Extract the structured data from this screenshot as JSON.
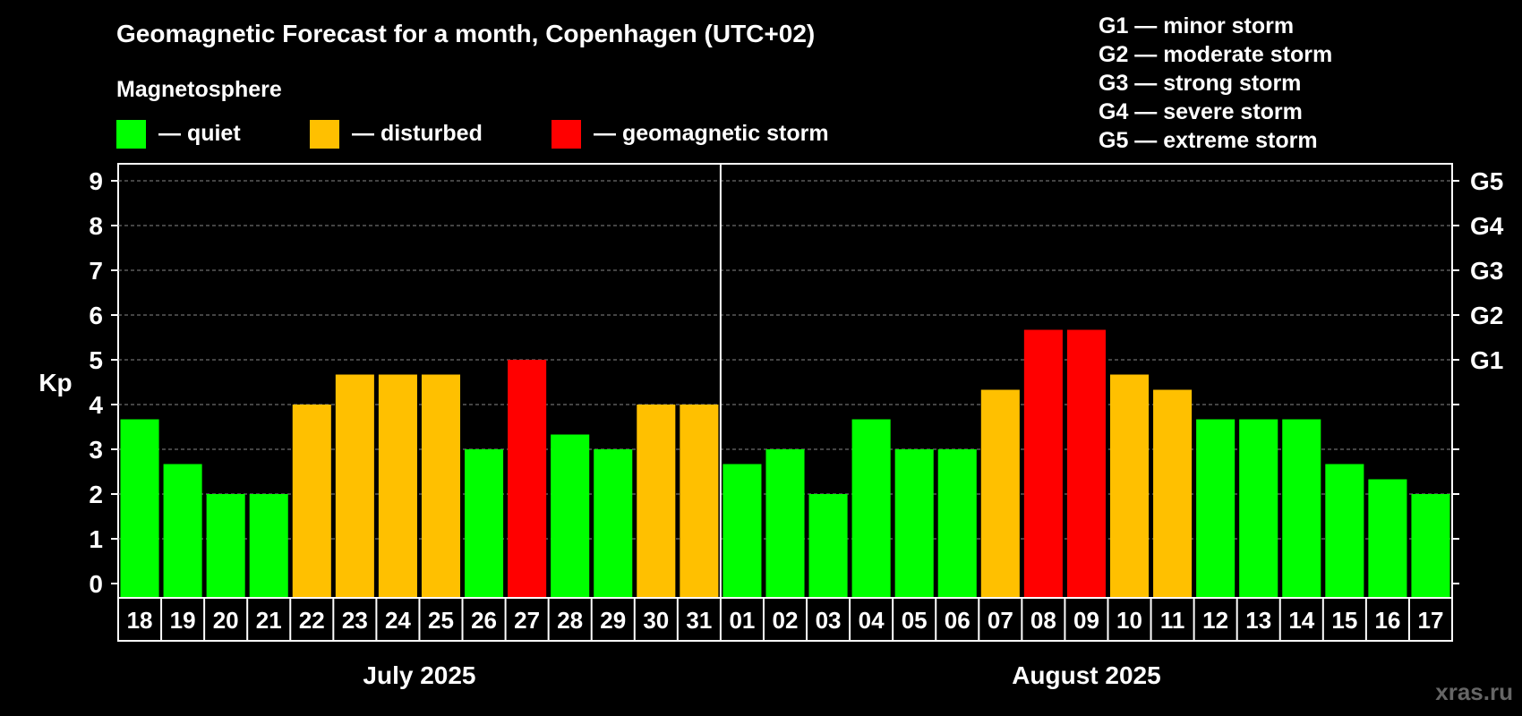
{
  "title": "Geomagnetic Forecast for a month, Copenhagen (UTC+02)",
  "legend": {
    "heading": "Magnetosphere",
    "items": [
      {
        "label": "— quiet",
        "color": "#00ff00"
      },
      {
        "label": "— disturbed",
        "color": "#ffc000"
      },
      {
        "label": "— geomagnetic storm",
        "color": "#ff0000"
      }
    ]
  },
  "storm_scale": [
    "G1 — minor storm",
    "G2 — moderate storm",
    "G3 — strong storm",
    "G4 — severe storm",
    "G5 — extreme storm"
  ],
  "watermark": "xras.ru",
  "chart_data": {
    "type": "bar",
    "ylabel": "Kp",
    "ylim": [
      0,
      9
    ],
    "y_ticks": [
      "0",
      "1",
      "2",
      "3",
      "4",
      "5",
      "6",
      "7",
      "8",
      "9"
    ],
    "right_ticks": [
      {
        "value": 5,
        "label": "G1"
      },
      {
        "value": 6,
        "label": "G2"
      },
      {
        "value": 7,
        "label": "G3"
      },
      {
        "value": 8,
        "label": "G4"
      },
      {
        "value": 9,
        "label": "G5"
      }
    ],
    "grid": "dashed-horizontal",
    "categories": [
      "18",
      "19",
      "20",
      "21",
      "22",
      "23",
      "24",
      "25",
      "26",
      "27",
      "28",
      "29",
      "30",
      "31",
      "01",
      "02",
      "03",
      "04",
      "05",
      "06",
      "07",
      "08",
      "09",
      "10",
      "11",
      "12",
      "13",
      "14",
      "15",
      "16",
      "17"
    ],
    "values": [
      3.67,
      2.67,
      2,
      2,
      4,
      4.67,
      4.67,
      4.67,
      3,
      5,
      3.33,
      3,
      4,
      4,
      2.67,
      3,
      2,
      3.67,
      3,
      3,
      4.33,
      5.67,
      5.67,
      4.67,
      4.33,
      3.67,
      3.67,
      3.67,
      2.67,
      2.33,
      2
    ],
    "status": [
      "quiet",
      "quiet",
      "quiet",
      "quiet",
      "disturbed",
      "disturbed",
      "disturbed",
      "disturbed",
      "quiet",
      "storm",
      "quiet",
      "quiet",
      "disturbed",
      "disturbed",
      "quiet",
      "quiet",
      "quiet",
      "quiet",
      "quiet",
      "quiet",
      "disturbed",
      "storm",
      "storm",
      "disturbed",
      "disturbed",
      "quiet",
      "quiet",
      "quiet",
      "quiet",
      "quiet",
      "quiet"
    ],
    "colors": {
      "quiet": "#00ff00",
      "disturbed": "#ffc000",
      "storm": "#ff0000"
    },
    "months": [
      {
        "label": "July 2025",
        "start": 0,
        "count": 14
      },
      {
        "label": "August 2025",
        "start": 14,
        "count": 17
      }
    ]
  }
}
